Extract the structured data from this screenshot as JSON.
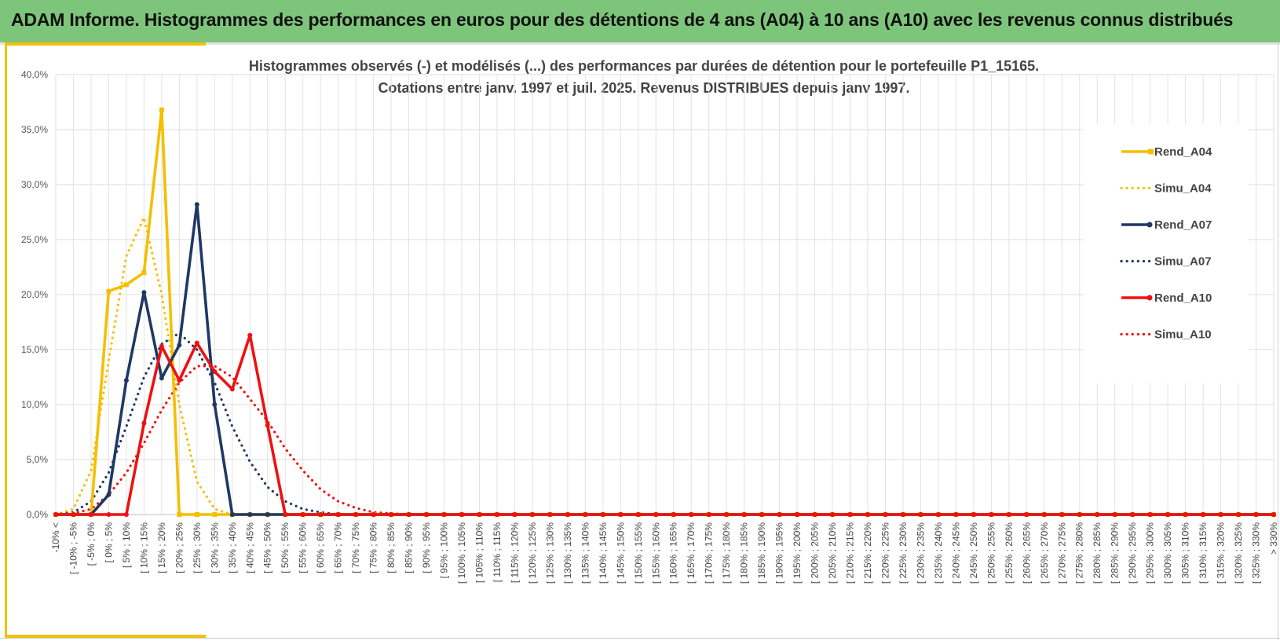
{
  "header": {
    "title": "ADAM Informe. Histogrammes des performances en euros pour des détentions de 4 ans (A04) à 10 ans (A10) avec les revenus connus distribués"
  },
  "chart_data": {
    "type": "line",
    "title": [
      "Histogrammes observés (-) et modélisés (...) des performances par durées de détention pour le portefeuille P1_15165.",
      "Cotations entre janv. 1997 et juil. 2025. Revenus DISTRIBUES depuis janv 1997."
    ],
    "xlabel": "",
    "ylabel": "",
    "ylim": [
      0,
      40
    ],
    "yticks": [
      "0,0%",
      "5,0%",
      "10,0%",
      "15,0%",
      "20,0%",
      "25,0%",
      "30,0%",
      "35,0%",
      "40,0%"
    ],
    "grid": true,
    "legend_position": "right",
    "categories": [
      "-10% <",
      "[ -10% ; -5%",
      "[ -5% ; 0%",
      "[ 0% ; 5%",
      "[ 5% ; 10%",
      "[ 10% ; 15%",
      "[ 15% ; 20%",
      "[ 20% ; 25%",
      "[ 25% ; 30%",
      "[ 30% ; 35%",
      "[ 35% ; 40%",
      "[ 40% ; 45%",
      "[ 45% ; 50%",
      "[ 50% ; 55%",
      "[ 55% ; 60%",
      "[ 60% ; 65%",
      "[ 65% ; 70%",
      "[ 70% ; 75%",
      "[ 75% ; 80%",
      "[ 80% ; 85%",
      "[ 85% ; 90%",
      "[ 90% ; 95%",
      "[ 95% ; 100%",
      "[ 100% ; 105%",
      "[ 105% ; 110%",
      "[ 110% ; 115%",
      "[ 115% ; 120%",
      "[ 120% ; 125%",
      "[ 125% ; 130%",
      "[ 130% ; 135%",
      "[ 135% ; 140%",
      "[ 140% ; 145%",
      "[ 145% ; 150%",
      "[ 150% ; 155%",
      "[ 155% ; 160%",
      "[ 160% ; 165%",
      "[ 165% ; 170%",
      "[ 170% ; 175%",
      "[ 175% ; 180%",
      "[ 180% ; 185%",
      "[ 185% ; 190%",
      "[ 190% ; 195%",
      "[ 195% ; 200%",
      "[ 200% ; 205%",
      "[ 205% ; 210%",
      "[ 210% ; 215%",
      "[ 215% ; 220%",
      "[ 220% ; 225%",
      "[ 225% ; 230%",
      "[ 230% ; 235%",
      "[ 235% ; 240%",
      "[ 240% ; 245%",
      "[ 245% ; 250%",
      "[ 250% ; 255%",
      "[ 255% ; 260%",
      "[ 260% ; 265%",
      "[ 265% ; 270%",
      "[ 270% ; 275%",
      "[ 275% ; 280%",
      "[ 280% ; 285%",
      "[ 285% ; 290%",
      "[ 290% ; 295%",
      "[ 295% ; 300%",
      "[ 300% ; 305%",
      "[ 305% ; 310%",
      "[ 310% ; 315%",
      "[ 315% ; 320%",
      "[ 320% ; 325%",
      "[ 325% ; 330%",
      "> 330%"
    ],
    "series": [
      {
        "name": "Rend_A04",
        "style": "solid",
        "marker": "square",
        "color": "#f5bf00",
        "values": [
          0,
          0,
          0,
          20.3,
          20.9,
          22.0,
          36.8,
          0,
          0,
          0,
          0,
          0,
          0,
          0,
          0,
          0,
          0,
          0,
          0,
          0,
          0,
          0,
          0,
          0,
          0,
          0,
          0,
          0,
          0,
          0,
          0,
          0,
          0,
          0,
          0,
          0,
          0,
          0,
          0,
          0,
          0,
          0,
          0,
          0,
          0,
          0,
          0,
          0,
          0,
          0,
          0,
          0,
          0,
          0,
          0,
          0,
          0,
          0,
          0,
          0,
          0,
          0,
          0,
          0,
          0,
          0,
          0,
          0,
          0,
          0
        ]
      },
      {
        "name": "Simu_A04",
        "style": "dotted",
        "color": "#f5bf00",
        "values": [
          0,
          0.5,
          4.0,
          14.0,
          23.5,
          27.0,
          20.0,
          10.0,
          3.0,
          0.5,
          0,
          0,
          0,
          0,
          0,
          0,
          0,
          0,
          0,
          0,
          0,
          0,
          0,
          0,
          0,
          0,
          0,
          0,
          0,
          0,
          0,
          0,
          0,
          0,
          0,
          0,
          0,
          0,
          0,
          0,
          0,
          0,
          0,
          0,
          0,
          0,
          0,
          0,
          0,
          0,
          0,
          0,
          0,
          0,
          0,
          0,
          0,
          0,
          0,
          0,
          0,
          0,
          0,
          0,
          0,
          0,
          0,
          0,
          0,
          0
        ]
      },
      {
        "name": "Rend_A07",
        "style": "solid",
        "marker": "circle",
        "color": "#1f3864",
        "values": [
          0,
          0,
          0,
          1.8,
          12.2,
          20.2,
          12.4,
          15.4,
          28.2,
          10.0,
          0,
          0,
          0,
          0,
          0,
          0,
          0,
          0,
          0,
          0,
          0,
          0,
          0,
          0,
          0,
          0,
          0,
          0,
          0,
          0,
          0,
          0,
          0,
          0,
          0,
          0,
          0,
          0,
          0,
          0,
          0,
          0,
          0,
          0,
          0,
          0,
          0,
          0,
          0,
          0,
          0,
          0,
          0,
          0,
          0,
          0,
          0,
          0,
          0,
          0,
          0,
          0,
          0,
          0,
          0,
          0,
          0,
          0,
          0,
          0
        ]
      },
      {
        "name": "Simu_A07",
        "style": "dotted",
        "color": "#1f3864",
        "values": [
          0,
          0.2,
          1.2,
          3.8,
          8.0,
          12.5,
          15.5,
          16.5,
          15.0,
          12.0,
          8.0,
          4.8,
          2.5,
          1.2,
          0.5,
          0.2,
          0,
          0,
          0,
          0,
          0,
          0,
          0,
          0,
          0,
          0,
          0,
          0,
          0,
          0,
          0,
          0,
          0,
          0,
          0,
          0,
          0,
          0,
          0,
          0,
          0,
          0,
          0,
          0,
          0,
          0,
          0,
          0,
          0,
          0,
          0,
          0,
          0,
          0,
          0,
          0,
          0,
          0,
          0,
          0,
          0,
          0,
          0,
          0,
          0,
          0,
          0,
          0,
          0,
          0
        ]
      },
      {
        "name": "Rend_A10",
        "style": "solid",
        "marker": "circle",
        "color": "#ee1111",
        "values": [
          0,
          0,
          0,
          0,
          0,
          8.3,
          15.3,
          12.2,
          15.6,
          13.0,
          11.4,
          16.3,
          8.1,
          0,
          0,
          0,
          0,
          0,
          0,
          0,
          0,
          0,
          0,
          0,
          0,
          0,
          0,
          0,
          0,
          0,
          0,
          0,
          0,
          0,
          0,
          0,
          0,
          0,
          0,
          0,
          0,
          0,
          0,
          0,
          0,
          0,
          0,
          0,
          0,
          0,
          0,
          0,
          0,
          0,
          0,
          0,
          0,
          0,
          0,
          0,
          0,
          0,
          0,
          0,
          0,
          0,
          0,
          0,
          0,
          0
        ]
      },
      {
        "name": "Simu_A10",
        "style": "dotted",
        "color": "#ee1111",
        "values": [
          0,
          0.1,
          0.5,
          1.8,
          3.8,
          6.5,
          9.5,
          12.0,
          13.5,
          13.5,
          12.5,
          10.5,
          8.5,
          6.0,
          4.0,
          2.3,
          1.2,
          0.6,
          0.2,
          0.1,
          0,
          0,
          0,
          0,
          0,
          0,
          0,
          0,
          0,
          0,
          0,
          0,
          0,
          0,
          0,
          0,
          0,
          0,
          0,
          0,
          0,
          0,
          0,
          0,
          0,
          0,
          0,
          0,
          0,
          0,
          0,
          0,
          0,
          0,
          0,
          0,
          0,
          0,
          0,
          0,
          0,
          0,
          0,
          0,
          0,
          0,
          0,
          0,
          0,
          0
        ]
      }
    ]
  }
}
